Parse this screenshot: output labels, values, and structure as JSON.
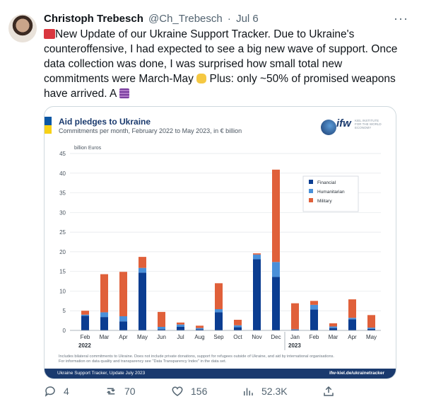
{
  "tweet": {
    "author_name": "Christoph Trebesch",
    "handle": "@Ch_Trebesch",
    "date": "Jul 6",
    "text_part1": "New Update of our Ukraine Support Tracker. Due to Ukraine's counteroffensive, I had expected to see a big new wave of support. Once data collection was done, I was surprised how small total new commitments were March-May ",
    "text_part2": " Plus: only ~50% of promised weapons have arrived. A ",
    "more_label": "···"
  },
  "card": {
    "title": "Aid pledges to Ukraine",
    "subtitle": "Commitments per month, February 2022 to May 2023, in € billion",
    "logo_text": "ifw",
    "logo_small": "KIEL INSTITUTE FOR THE WORLD ECONOMY",
    "footnote_line1": "Includes bilateral commitments to Ukraine. Does not include private donations, support for refugees outside of Ukraine, and aid by international organisations.",
    "footnote_line2": "For information on data quality and transparency see \"Data Transparency Index\" in the data set.",
    "footer_left": "Ukraine Support Tracker, Update July 2023",
    "footer_right": "ifw-kiel.de/ukrainetracker"
  },
  "chart_data": {
    "type": "bar",
    "stacked": true,
    "title": "Aid pledges to Ukraine",
    "subtitle": "Commitments per month, February 2022 to May 2023, in € billion",
    "ylabel": "billion Euros",
    "ylim": [
      0,
      45
    ],
    "yticks": [
      0,
      5,
      10,
      15,
      20,
      25,
      30,
      35,
      40,
      45
    ],
    "categories": [
      "Feb",
      "Mar",
      "Apr",
      "May",
      "Jun",
      "Jul",
      "Aug",
      "Sep",
      "Oct",
      "Nov",
      "Dec",
      "Jan",
      "Feb",
      "Mar",
      "Apr",
      "May"
    ],
    "year_labels": [
      {
        "label": "2022",
        "index": 0
      },
      {
        "label": "2023",
        "index": 11
      }
    ],
    "series": [
      {
        "name": "Financial",
        "color": "#0b3d91",
        "values": [
          3.7,
          3.4,
          2.3,
          14.7,
          0.3,
          0.9,
          0.3,
          4.6,
          0.8,
          18.1,
          13.6,
          0.2,
          5.3,
          0.6,
          2.8,
          0.4
        ]
      },
      {
        "name": "Humanitarian",
        "color": "#4a90d9",
        "values": [
          0.3,
          1.2,
          1.3,
          1.2,
          0.6,
          0.6,
          0.3,
          0.8,
          0.5,
          1.2,
          3.8,
          0.1,
          1.2,
          0.4,
          0.4,
          0.3
        ]
      },
      {
        "name": "Military",
        "color": "#e0603a",
        "values": [
          1.0,
          9.7,
          11.3,
          2.8,
          3.8,
          0.5,
          0.6,
          6.6,
          1.4,
          0.3,
          23.5,
          6.6,
          1.0,
          0.8,
          4.7,
          3.2
        ]
      }
    ],
    "legend_position": "right",
    "grid": true
  },
  "actions": {
    "replies": "4",
    "retweets": "70",
    "likes": "156",
    "views": "52.3K"
  }
}
